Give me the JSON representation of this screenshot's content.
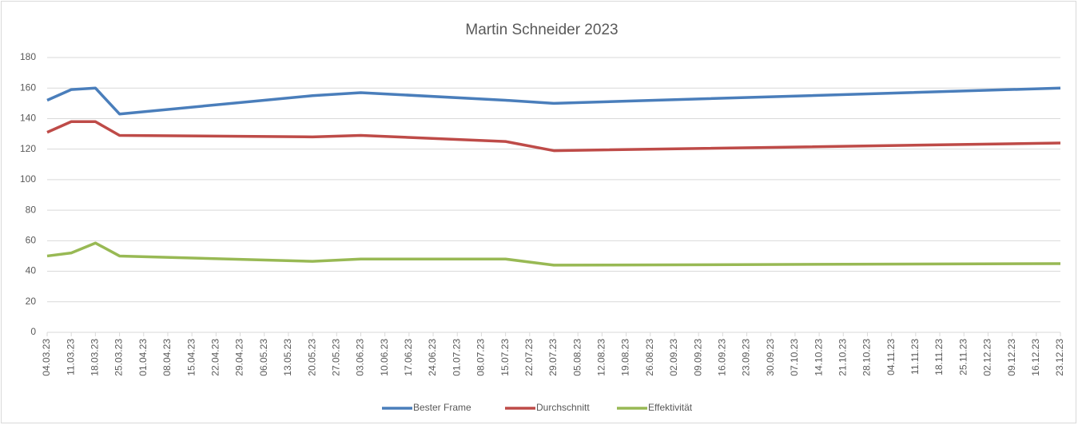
{
  "chart_data": {
    "type": "line",
    "title": "Martin Schneider 2023",
    "x": [
      "04.03.23",
      "11.03.23",
      "18.03.23",
      "25.03.23",
      "20.05.23",
      "03.06.23",
      "15.07.23",
      "29.07.23",
      "23.12.23"
    ],
    "series": [
      {
        "name": "Bester Frame",
        "color": "#4a7ebb",
        "values": [
          152,
          159,
          160,
          143,
          155,
          157,
          152,
          150,
          160
        ]
      },
      {
        "name": "Durchschnitt",
        "color": "#be4b48",
        "values": [
          131,
          138,
          138,
          129,
          128,
          129,
          125,
          119,
          124
        ]
      },
      {
        "name": "Effektivität",
        "color": "#98b954",
        "values": [
          50,
          52,
          58.5,
          50,
          46.5,
          48,
          48,
          44,
          45
        ]
      }
    ],
    "xlim": [
      "04.03.23",
      "23.12.23"
    ],
    "xticks": [
      "04.03.23",
      "11.03.23",
      "18.03.23",
      "25.03.23",
      "01.04.23",
      "08.04.23",
      "15.04.23",
      "22.04.23",
      "29.04.23",
      "06.05.23",
      "13.05.23",
      "20.05.23",
      "27.05.23",
      "03.06.23",
      "10.06.23",
      "17.06.23",
      "24.06.23",
      "01.07.23",
      "08.07.23",
      "15.07.23",
      "22.07.23",
      "29.07.23",
      "05.08.23",
      "12.08.23",
      "19.08.23",
      "26.08.23",
      "02.09.23",
      "09.09.23",
      "16.09.23",
      "23.09.23",
      "30.09.23",
      "07.10.23",
      "14.10.23",
      "21.10.23",
      "28.10.23",
      "04.11.23",
      "11.11.23",
      "18.11.23",
      "25.11.23",
      "02.12.23",
      "09.12.23",
      "16.12.23",
      "23.12.23"
    ],
    "ylim": [
      0,
      180
    ],
    "yticks": [
      0,
      20,
      40,
      60,
      80,
      100,
      120,
      140,
      160,
      180
    ],
    "grid": true,
    "legend": "bottom"
  }
}
